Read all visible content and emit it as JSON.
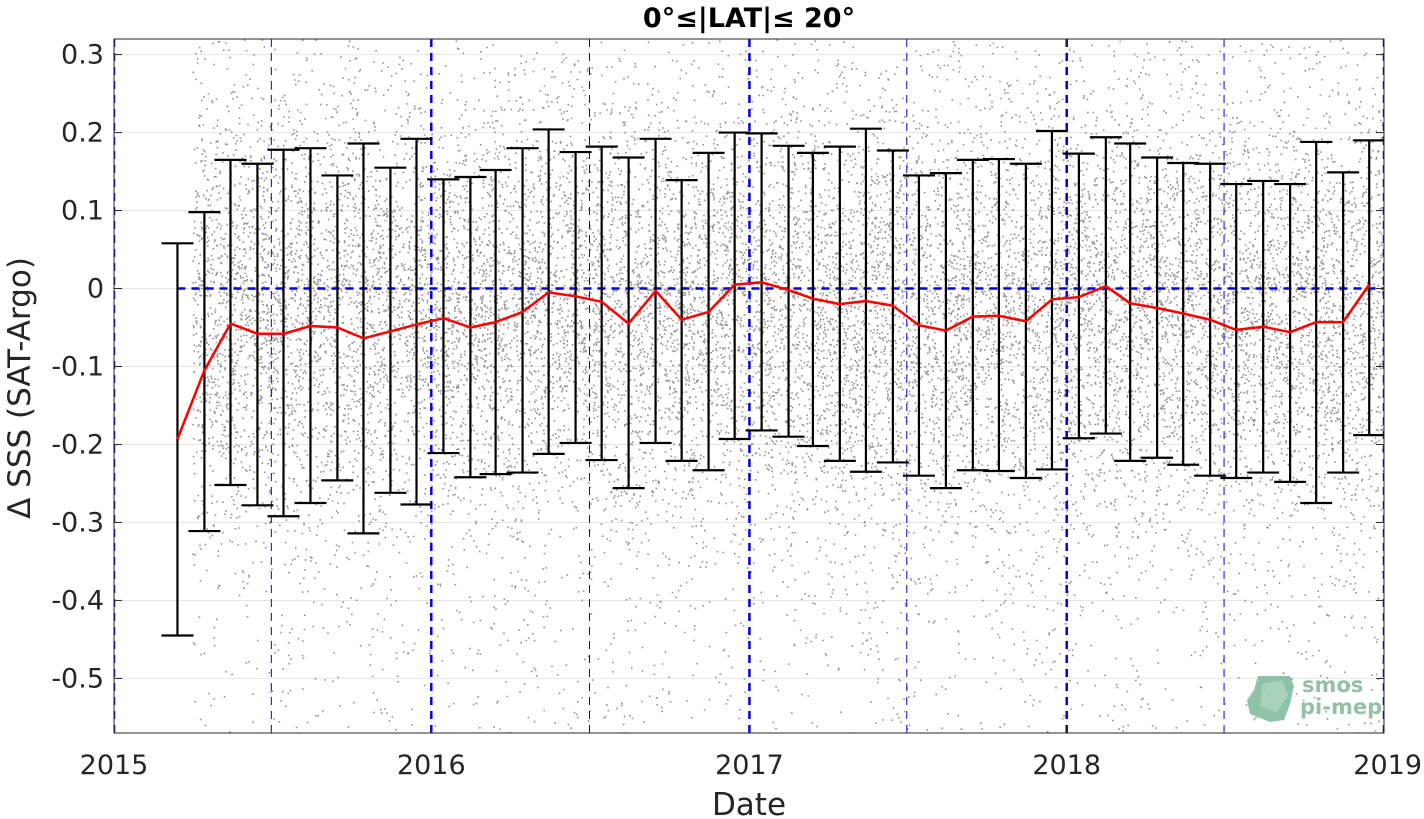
{
  "chart_data": {
    "type": "scatter",
    "title": "0°≤|LAT|≤ 20°",
    "xlabel": "Date",
    "ylabel": "Δ SSS (SAT-Argo)",
    "xlim": [
      "2015-01-01",
      "2019-01-01"
    ],
    "ylim": [
      -0.57,
      0.32
    ],
    "x_ticks": [
      "2015",
      "2016",
      "2017",
      "2018",
      "2019"
    ],
    "y_ticks": [
      -0.5,
      -0.4,
      -0.3,
      -0.2,
      -0.1,
      0,
      0.1,
      0.2,
      0.3
    ],
    "y_tick_labels": [
      "-0.5",
      "-0.4",
      "-0.3",
      "-0.2",
      "-0.1",
      "0",
      "0.1",
      "0.2",
      "0.3"
    ],
    "grid": true,
    "scatter_points": {
      "color": "#808080",
      "x_range": [
        "2015-04-01",
        "2019-01-01"
      ],
      "y_range": [
        -0.57,
        0.32
      ]
    },
    "monthly_stats": {
      "x": [
        "2015-03-15",
        "2015-04-15",
        "2015-05-15",
        "2015-06-15",
        "2015-07-15",
        "2015-08-15",
        "2015-09-15",
        "2015-10-15",
        "2015-11-15",
        "2015-12-15",
        "2016-01-15",
        "2016-02-15",
        "2016-03-15",
        "2016-04-15",
        "2016-05-15",
        "2016-06-15",
        "2016-07-15",
        "2016-08-15",
        "2016-09-15",
        "2016-10-15",
        "2016-11-15",
        "2016-12-15",
        "2017-01-15",
        "2017-02-15",
        "2017-03-15",
        "2017-04-15",
        "2017-05-15",
        "2017-06-15",
        "2017-07-15",
        "2017-08-15",
        "2017-09-15",
        "2017-10-15",
        "2017-11-15",
        "2017-12-15",
        "2018-01-15",
        "2018-02-15",
        "2018-03-15",
        "2018-04-15",
        "2018-05-15",
        "2018-06-15",
        "2018-07-15",
        "2018-08-15",
        "2018-09-15",
        "2018-10-15",
        "2018-11-15",
        "2018-12-15"
      ],
      "mean": [
        -0.193,
        -0.105,
        -0.045,
        -0.058,
        -0.058,
        -0.048,
        -0.05,
        -0.064,
        -0.055,
        -0.046,
        -0.038,
        -0.05,
        -0.043,
        -0.03,
        -0.005,
        -0.01,
        -0.017,
        -0.045,
        -0.003,
        -0.04,
        -0.03,
        0.005,
        0.008,
        -0.002,
        -0.013,
        -0.02,
        -0.016,
        -0.022,
        -0.047,
        -0.054,
        -0.036,
        -0.035,
        -0.042,
        -0.014,
        -0.011,
        0.003,
        -0.019,
        -0.025,
        -0.032,
        -0.04,
        -0.053,
        -0.049,
        -0.056,
        -0.043,
        -0.043,
        0.005
      ],
      "upper": [
        0.058,
        0.098,
        0.165,
        0.16,
        0.178,
        0.18,
        0.145,
        0.186,
        0.155,
        0.192,
        0.14,
        0.143,
        0.152,
        0.18,
        0.204,
        0.175,
        0.182,
        0.168,
        0.192,
        0.139,
        0.174,
        0.2,
        0.199,
        0.183,
        0.174,
        0.182,
        0.205,
        0.177,
        0.145,
        0.148,
        0.165,
        0.166,
        0.16,
        0.202,
        0.173,
        0.194,
        0.186,
        0.168,
        0.161,
        0.16,
        0.134,
        0.138,
        0.134,
        0.188,
        0.149,
        0.19
      ],
      "lower": [
        -0.445,
        -0.311,
        -0.252,
        -0.278,
        -0.292,
        -0.275,
        -0.246,
        -0.314,
        -0.262,
        -0.277,
        -0.211,
        -0.242,
        -0.238,
        -0.236,
        -0.212,
        -0.198,
        -0.22,
        -0.256,
        -0.198,
        -0.221,
        -0.233,
        -0.193,
        -0.182,
        -0.19,
        -0.202,
        -0.221,
        -0.235,
        -0.223,
        -0.24,
        -0.256,
        -0.233,
        -0.234,
        -0.243,
        -0.232,
        -0.192,
        -0.186,
        -0.221,
        -0.217,
        -0.226,
        -0.24,
        -0.243,
        -0.236,
        -0.248,
        -0.275,
        -0.236,
        -0.188
      ],
      "mean_color": "#ff0000",
      "errorbar_color": "#000000"
    },
    "reference_lines": {
      "zero_line_color": "#0000e0",
      "year_line_color": "#0000e0"
    }
  },
  "logo": {
    "line1": "smos",
    "line2": "pi-mep",
    "color": "#6aa886"
  }
}
